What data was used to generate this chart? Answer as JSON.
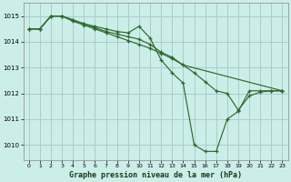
{
  "title": "Graphe pression niveau de la mer (hPa)",
  "bg_color": "#cceee8",
  "grid_color": "#aacccc",
  "line_color": "#2d6a2d",
  "xlim": [
    -0.5,
    23.5
  ],
  "ylim": [
    1009.4,
    1015.5
  ],
  "yticks": [
    1010,
    1011,
    1012,
    1013,
    1014,
    1015
  ],
  "xticks": [
    0,
    1,
    2,
    3,
    4,
    5,
    6,
    7,
    8,
    9,
    10,
    11,
    12,
    13,
    14,
    15,
    16,
    17,
    18,
    19,
    20,
    21,
    22,
    23
  ],
  "series1_x": [
    0,
    1,
    2,
    3,
    4,
    5,
    6,
    7,
    8,
    9,
    10,
    11,
    12,
    13,
    14,
    15,
    16,
    17,
    18,
    19,
    20,
    21,
    22,
    23
  ],
  "series1_y": [
    1014.5,
    1014.5,
    1015.0,
    1015.0,
    1014.85,
    1014.7,
    1014.6,
    1014.5,
    1014.4,
    1014.35,
    1014.6,
    1014.15,
    1013.3,
    1012.8,
    1012.4,
    1010.0,
    1009.75,
    1009.75,
    1011.0,
    1011.3,
    1012.1,
    1012.1,
    1012.1,
    1012.1
  ],
  "series2_x": [
    0,
    1,
    2,
    3,
    4,
    5,
    6,
    7,
    8,
    9,
    10,
    11,
    12,
    13,
    14,
    23
  ],
  "series2_y": [
    1014.5,
    1014.5,
    1015.0,
    1015.0,
    1014.85,
    1014.7,
    1014.55,
    1014.4,
    1014.3,
    1014.2,
    1014.1,
    1013.9,
    1013.6,
    1013.4,
    1013.1,
    1012.1
  ],
  "series3_x": [
    0,
    1,
    2,
    3,
    4,
    5,
    6,
    7,
    8,
    9,
    10,
    11,
    12,
    13,
    14,
    15,
    16,
    17,
    18,
    19,
    20,
    21,
    22,
    23
  ],
  "series3_y": [
    1014.5,
    1014.5,
    1015.0,
    1015.0,
    1014.8,
    1014.65,
    1014.5,
    1014.35,
    1014.2,
    1014.05,
    1013.9,
    1013.75,
    1013.55,
    1013.35,
    1013.1,
    1012.8,
    1012.45,
    1012.1,
    1012.0,
    1011.35,
    1011.9,
    1012.05,
    1012.1,
    1012.1
  ]
}
